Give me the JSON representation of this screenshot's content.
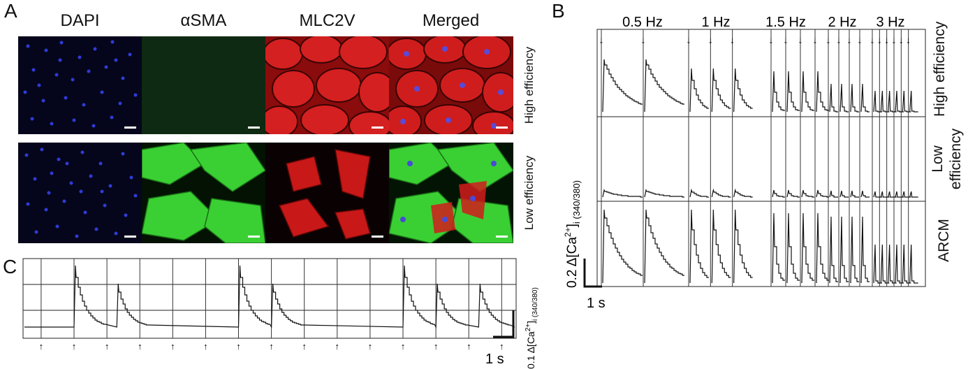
{
  "figure": {
    "panel_a": {
      "letter": "A",
      "columns": [
        "DAPI",
        "αSMA",
        "MLC2V",
        "Merged"
      ],
      "rows": [
        "High efficiency",
        "Low efficiency"
      ]
    },
    "panel_b": {
      "letter": "B",
      "frequencies": [
        "0.5 Hz",
        "1 Hz",
        "1.5 Hz",
        "2 Hz",
        "3 Hz"
      ],
      "row_labels": [
        {
          "line1": "High",
          "line2": "efficiency"
        },
        {
          "line1": "Low",
          "line2": "efficiency"
        },
        {
          "line1": "ARCM",
          "line2": ""
        }
      ],
      "ylabel": "0.2 Δ[Ca²⁺]i (340/380)",
      "ylabel_main": "0.2 Δ[Ca",
      "ylabel_sup": "2+",
      "ylabel_end": "]",
      "ylabel_sub": "i (340/380)",
      "scalebar_time": "1 s",
      "stim_marker": "↓"
    },
    "panel_c": {
      "letter": "C",
      "ylabel_main": "0.1 Δ[Ca",
      "ylabel_sup": "2+",
      "ylabel_end": "]",
      "ylabel_sub": "i (340/380)",
      "scalebar_time": "1 s",
      "stim_marker": "↑",
      "stim_count": 15,
      "beat_times_s": [
        1.0,
        2.3,
        6.0,
        7.0,
        11.0,
        12.0,
        13.3
      ]
    }
  },
  "colors": {
    "dapi": "#2a35c8",
    "asma": "#36c92e",
    "mlc2v": "#d41a1a",
    "trace": "#111111",
    "grid": "#222222"
  }
}
